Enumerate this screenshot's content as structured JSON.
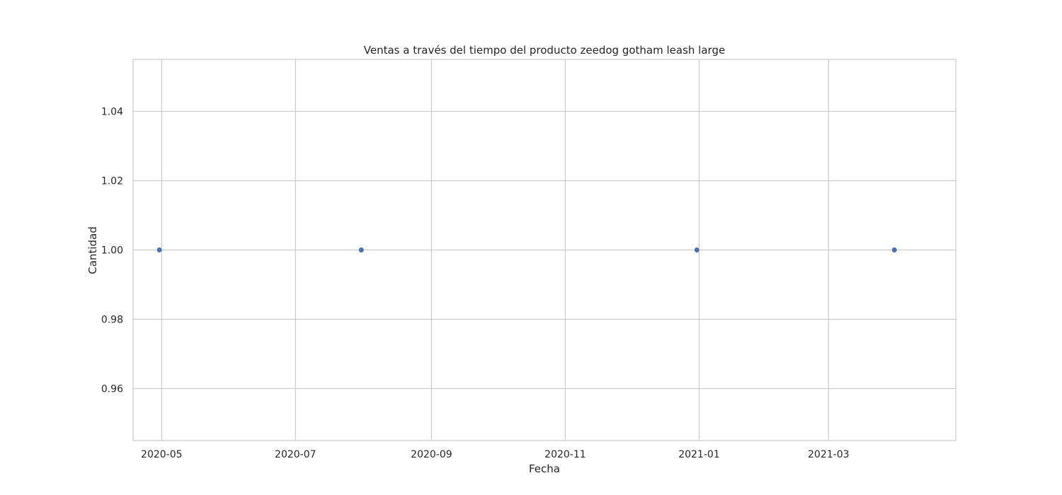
{
  "chart_data": {
    "type": "scatter",
    "title": "Ventas a través del tiempo del producto zeedog gotham leash large",
    "xlabel": "Fecha",
    "ylabel": "Cantidad",
    "x_type": "date",
    "xlim": [
      "2020-04-18",
      "2021-04-28"
    ],
    "ylim": [
      0.945,
      1.055
    ],
    "x_ticks": [
      "2020-05-01",
      "2020-07-01",
      "2020-09-01",
      "2020-11-01",
      "2021-01-01",
      "2021-03-01"
    ],
    "x_tick_labels": [
      "2020-05",
      "2020-07",
      "2020-09",
      "2020-11",
      "2021-01",
      "2021-03"
    ],
    "y_ticks": [
      0.96,
      0.98,
      1.0,
      1.02,
      1.04
    ],
    "y_tick_labels": [
      "0.96",
      "0.98",
      "1.00",
      "1.02",
      "1.04"
    ],
    "grid": true,
    "legend": "none",
    "points": [
      {
        "x": "2020-04-30",
        "y": 1.0
      },
      {
        "x": "2020-07-31",
        "y": 1.0
      },
      {
        "x": "2020-12-31",
        "y": 1.0
      },
      {
        "x": "2021-03-31",
        "y": 1.0
      }
    ],
    "colors": {
      "marker": "#4c72b0",
      "grid": "#cccccc",
      "frame": "#cccccc",
      "text": "#262626"
    }
  }
}
